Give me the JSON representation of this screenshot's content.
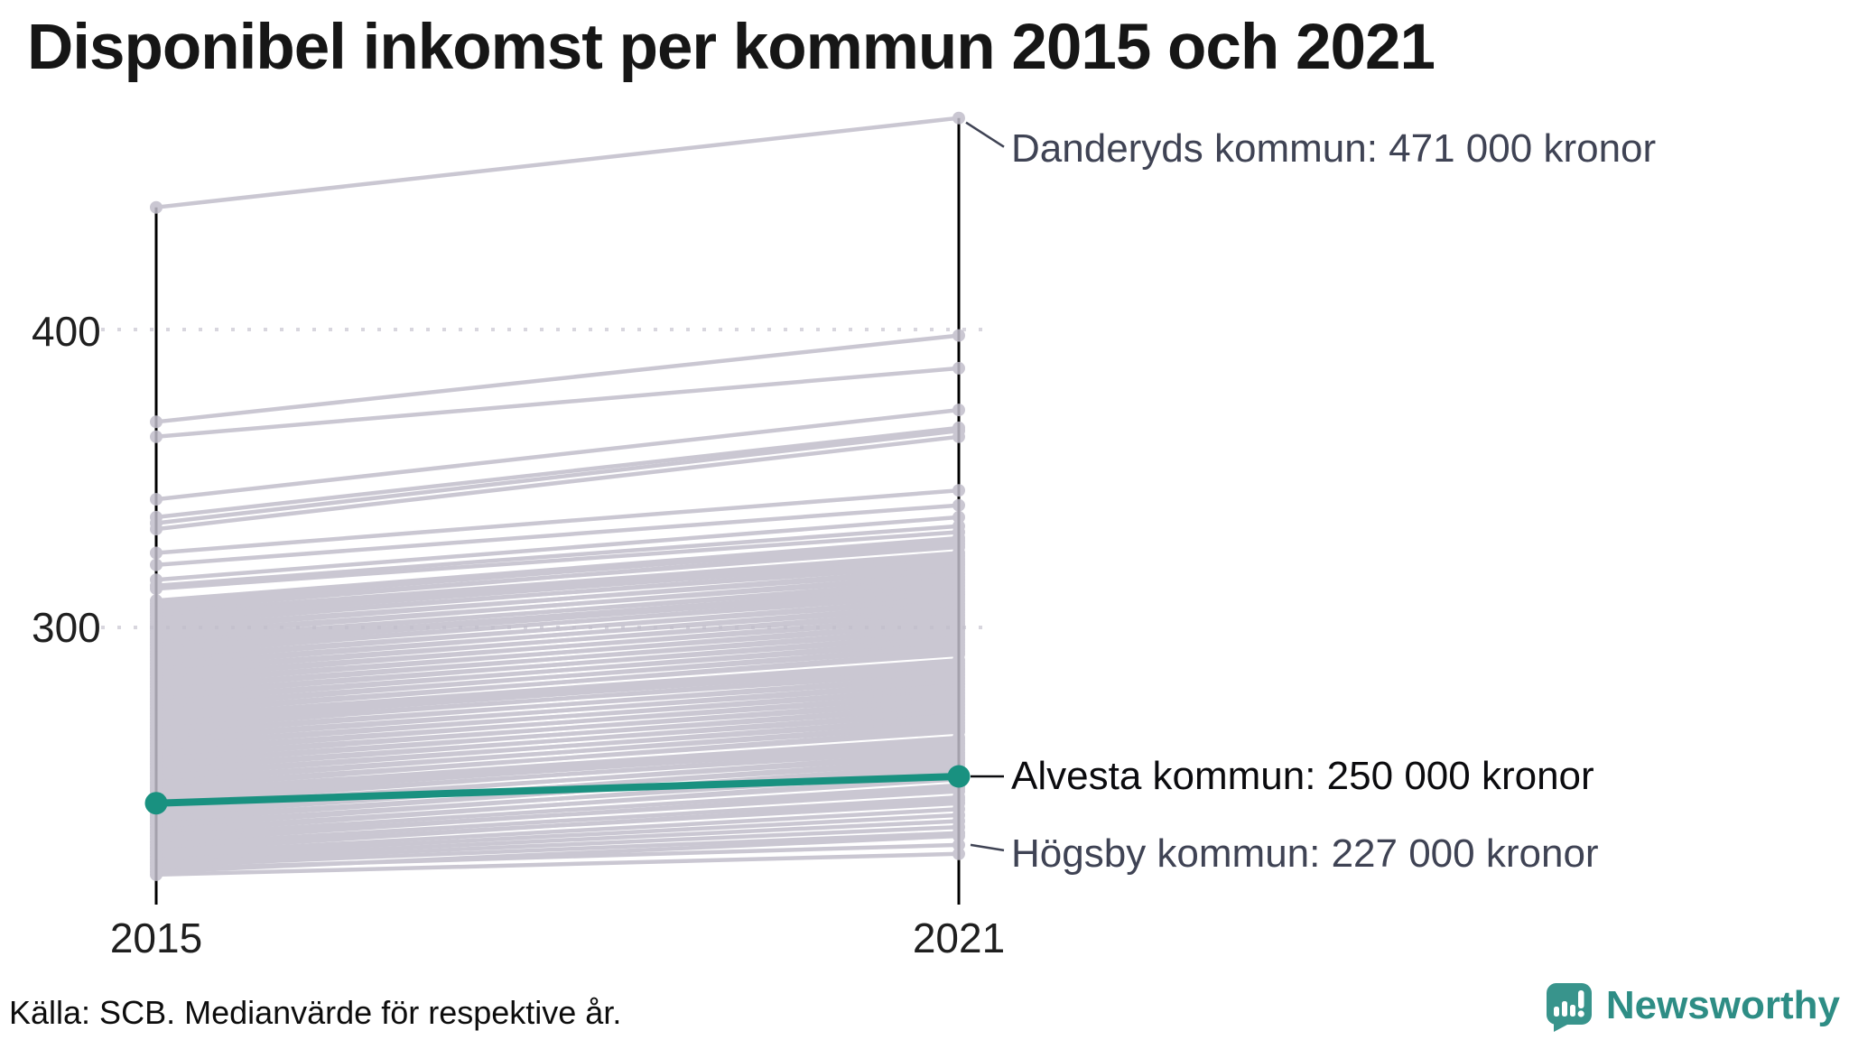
{
  "title": "Disponibel inkomst per kommun 2015 och 2021",
  "source_note": "Källa: SCB. Medianvärde för respektive år.",
  "branding": {
    "name": "Newsworthy",
    "icon": "speech-bubble-bar-chart-icon",
    "color": "#2e8d85"
  },
  "chart_data": {
    "type": "line",
    "subtype": "slope",
    "title": "Disponibel inkomst per kommun 2015 och 2021",
    "x_categories": [
      "2015",
      "2021"
    ],
    "yticks": [
      300,
      400
    ],
    "ylim": [
      210,
      480
    ],
    "grid": "dotted-horizontal-at-yticks",
    "legend": "none",
    "unit": "tusen kronor",
    "line_color": "#c1becb",
    "axis_color": "#000000",
    "gridline_color": "#d8d6de",
    "highlight": {
      "name": "Alvesta kommun",
      "values": [
        241,
        250
      ],
      "color": "#199180"
    },
    "annotations": [
      {
        "name": "Danderyds kommun",
        "label": "Danderyds kommun: 471 000 kronor",
        "attach_value": 471,
        "attach_x": "2021",
        "color": "#3f4354"
      },
      {
        "name": "Alvesta kommun",
        "label": "Alvesta kommun: 250 000 kronor",
        "attach_value": 250,
        "attach_x": "2021",
        "color": "#0b0b0e"
      },
      {
        "name": "Högsby kommun",
        "label": "Högsby kommun: 227 000 kronor",
        "attach_value": 227,
        "attach_x": "2021",
        "color": "#3f4354"
      }
    ],
    "background_lines": [
      [
        441,
        471
      ],
      [
        369,
        398
      ],
      [
        364,
        387
      ],
      [
        343,
        373
      ],
      [
        337,
        367
      ],
      [
        335,
        366
      ],
      [
        333,
        364
      ],
      [
        325,
        346
      ],
      [
        321,
        341
      ],
      [
        316,
        337
      ],
      [
        314,
        334
      ],
      [
        313,
        332
      ],
      [
        309,
        330
      ],
      [
        308,
        329
      ],
      [
        307,
        327
      ],
      [
        306,
        328
      ],
      [
        305,
        325
      ],
      [
        304,
        324
      ],
      [
        303,
        323
      ],
      [
        302,
        321
      ],
      [
        301,
        322
      ],
      [
        300,
        319
      ],
      [
        299,
        320
      ],
      [
        298,
        317
      ],
      [
        297,
        318
      ],
      [
        296,
        315
      ],
      [
        295,
        316
      ],
      [
        294,
        314
      ],
      [
        293,
        313
      ],
      [
        292,
        311
      ],
      [
        291,
        312
      ],
      [
        290,
        309
      ],
      [
        289,
        310
      ],
      [
        288,
        307
      ],
      [
        287,
        308
      ],
      [
        286,
        305
      ],
      [
        285,
        306
      ],
      [
        284,
        303
      ],
      [
        283,
        304
      ],
      [
        282,
        301
      ],
      [
        281,
        302
      ],
      [
        280,
        299
      ],
      [
        279,
        300
      ],
      [
        278,
        297
      ],
      [
        277,
        298
      ],
      [
        276,
        295
      ],
      [
        275,
        296
      ],
      [
        274,
        293
      ],
      [
        273,
        294
      ],
      [
        272,
        291
      ],
      [
        271,
        292
      ],
      [
        270,
        289
      ],
      [
        269,
        288
      ],
      [
        268,
        287
      ],
      [
        267,
        285
      ],
      [
        266,
        286
      ],
      [
        265,
        283
      ],
      [
        264,
        284
      ],
      [
        263,
        281
      ],
      [
        262,
        282
      ],
      [
        261,
        279
      ],
      [
        260,
        280
      ],
      [
        259,
        277
      ],
      [
        258,
        278
      ],
      [
        257,
        275
      ],
      [
        256,
        276
      ],
      [
        255,
        273
      ],
      [
        254,
        274
      ],
      [
        253,
        271
      ],
      [
        252,
        272
      ],
      [
        251,
        269
      ],
      [
        250,
        270
      ],
      [
        249,
        267
      ],
      [
        248,
        268
      ],
      [
        247,
        265
      ],
      [
        246,
        266
      ],
      [
        245,
        263
      ],
      [
        244,
        262
      ],
      [
        243,
        261
      ],
      [
        242,
        259
      ],
      [
        241,
        260
      ],
      [
        240,
        257
      ],
      [
        239,
        258
      ],
      [
        238,
        255
      ],
      [
        237,
        256
      ],
      [
        236,
        253
      ],
      [
        235,
        254
      ],
      [
        234,
        251
      ],
      [
        233,
        252
      ],
      [
        232,
        249
      ],
      [
        231,
        250
      ],
      [
        230,
        247
      ],
      [
        229,
        245
      ],
      [
        228,
        246
      ],
      [
        227,
        243
      ],
      [
        226,
        241
      ],
      [
        225,
        242
      ],
      [
        224,
        239
      ],
      [
        223,
        237
      ],
      [
        222,
        235
      ],
      [
        221,
        233
      ],
      [
        220,
        231
      ],
      [
        219,
        227
      ],
      [
        218,
        230
      ],
      [
        217,
        224
      ]
    ]
  }
}
